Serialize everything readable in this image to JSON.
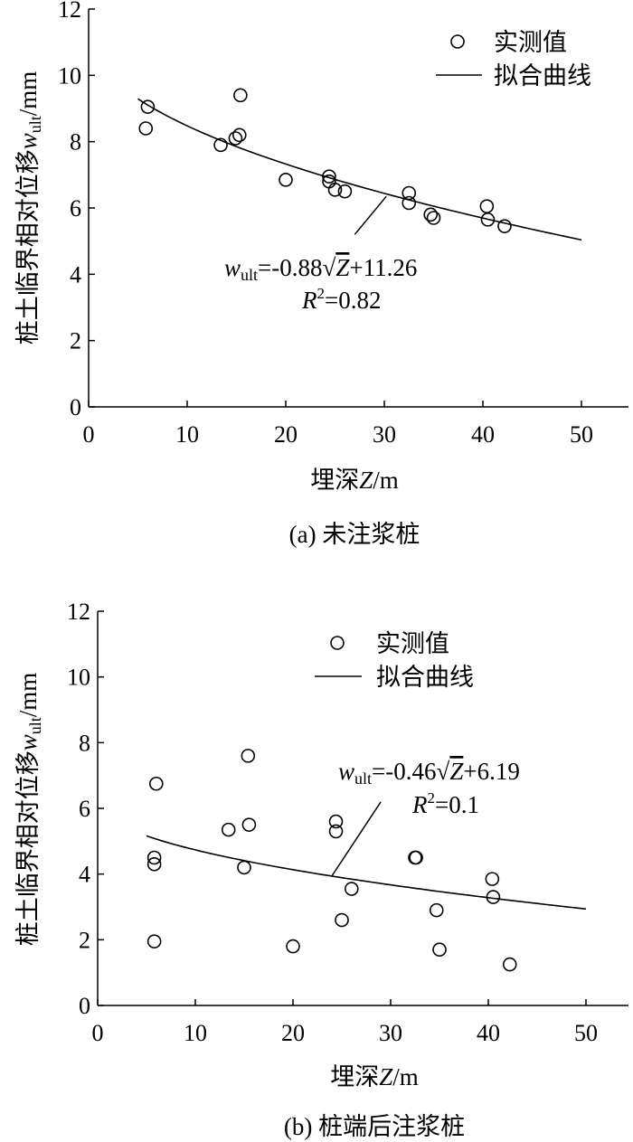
{
  "chart_data": [
    {
      "type": "scatter",
      "caption": "(a) 未注浆桩",
      "ylabel_prefix": "桩土临界相对位移",
      "ylabel_var": "w",
      "ylabel_sub": "ult",
      "ylabel_unit": "/mm",
      "xlabel_prefix": "埋深",
      "xlabel_var": "Z",
      "xlabel_unit": "/m",
      "xlim": [
        0,
        50
      ],
      "ylim": [
        0,
        12
      ],
      "xticks": [
        0,
        10,
        20,
        30,
        40,
        50
      ],
      "yticks": [
        0,
        2,
        4,
        6,
        8,
        10,
        12
      ],
      "legend": {
        "position": "top-right",
        "measured": "实测值",
        "fit": "拟合曲线"
      },
      "series": [
        {
          "name": "实测值",
          "points": [
            [
              5.8,
              8.4
            ],
            [
              6.0,
              9.05
            ],
            [
              13.4,
              7.9
            ],
            [
              14.9,
              8.1
            ],
            [
              15.3,
              8.2
            ],
            [
              15.4,
              9.4
            ],
            [
              20.0,
              6.85
            ],
            [
              24.4,
              6.95
            ],
            [
              24.4,
              6.8
            ],
            [
              25.0,
              6.55
            ],
            [
              26.0,
              6.5
            ],
            [
              32.5,
              6.45
            ],
            [
              32.5,
              6.15
            ],
            [
              34.7,
              5.8
            ],
            [
              35.0,
              5.7
            ],
            [
              40.4,
              6.05
            ],
            [
              40.5,
              5.65
            ],
            [
              42.2,
              5.45
            ]
          ]
        },
        {
          "name": "拟合曲线",
          "equation": {
            "a": -0.88,
            "b": 11.26
          },
          "x_range": [
            5,
            50
          ]
        }
      ],
      "annotation": {
        "eq_var": "w",
        "eq_sub": "ult",
        "eq_mid": "=-0.88",
        "eq_sqrt_sign": "√",
        "eq_sqrt_var": "Z",
        "eq_tail": "+11.26",
        "r2_var": "R",
        "r2_sup": "2",
        "r2_value": "=0.82",
        "pointer_from": [
          27.0,
          5.2
        ],
        "pointer_to": [
          30.2,
          6.35
        ]
      }
    },
    {
      "type": "scatter",
      "caption": "(b) 桩端后注浆桩",
      "ylabel_prefix": "桩土临界相对位移",
      "ylabel_var": "w",
      "ylabel_sub": "ult",
      "ylabel_unit": "/mm",
      "xlabel_prefix": "埋深",
      "xlabel_var": "Z",
      "xlabel_unit": "/m",
      "xlim": [
        0,
        50
      ],
      "ylim": [
        0,
        12
      ],
      "xticks": [
        0,
        10,
        20,
        30,
        40,
        50
      ],
      "yticks": [
        0,
        2,
        4,
        6,
        8,
        10,
        12
      ],
      "legend": {
        "position": "top-center",
        "measured": "实测值",
        "fit": "拟合曲线"
      },
      "series": [
        {
          "name": "实测值",
          "points": [
            [
              5.8,
              1.95
            ],
            [
              5.8,
              4.3
            ],
            [
              5.8,
              4.5
            ],
            [
              6.0,
              6.75
            ],
            [
              13.4,
              5.35
            ],
            [
              15.0,
              4.2
            ],
            [
              15.4,
              7.6
            ],
            [
              15.5,
              5.5
            ],
            [
              20.0,
              1.8
            ],
            [
              24.4,
              5.6
            ],
            [
              24.4,
              5.3
            ],
            [
              25.0,
              2.6
            ],
            [
              26.0,
              3.55
            ],
            [
              32.5,
              4.5
            ],
            [
              32.6,
              4.5
            ],
            [
              34.7,
              2.9
            ],
            [
              35.0,
              1.7
            ],
            [
              40.4,
              3.85
            ],
            [
              40.5,
              3.3
            ],
            [
              42.2,
              1.25
            ]
          ]
        },
        {
          "name": "拟合曲线",
          "equation": {
            "a": -0.46,
            "b": 6.19
          },
          "x_range": [
            5,
            50
          ]
        }
      ],
      "annotation": {
        "eq_var": "w",
        "eq_sub": "ult",
        "eq_mid": "=-0.46",
        "eq_sqrt_sign": "√",
        "eq_sqrt_var": "Z",
        "eq_tail": "+6.19",
        "r2_var": "R",
        "r2_sup": "2",
        "r2_value": "=0.1",
        "pointer_from": [
          29.0,
          6.2
        ],
        "pointer_to": [
          24.0,
          3.95
        ]
      }
    }
  ]
}
